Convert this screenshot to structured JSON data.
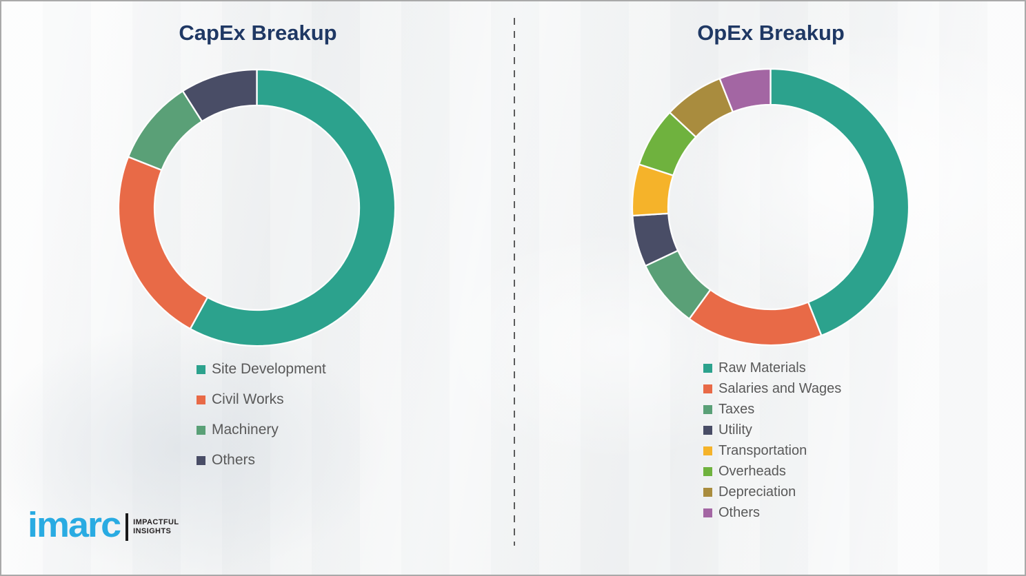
{
  "chart_data": [
    {
      "type": "donut",
      "title": "CapEx Breakup",
      "labels": [
        "Site Development",
        "Civil Works",
        "Machinery",
        "Others"
      ],
      "values": [
        58,
        23,
        10,
        9
      ],
      "unit": "percent",
      "colors": [
        "#2CA28D",
        "#E86A47",
        "#5AA077",
        "#494D66"
      ],
      "start_angle_deg": 0,
      "direction": "clockwise",
      "donut_hole_ratio": 0.74,
      "legend_position": "bottom-left",
      "data_labels_shown": false
    },
    {
      "type": "donut",
      "title": "OpEx Breakup",
      "labels": [
        "Raw Materials",
        "Salaries and Wages",
        "Taxes",
        "Utility",
        "Transportation",
        "Overheads",
        "Depreciation",
        "Others"
      ],
      "values": [
        44,
        16,
        8,
        6,
        6,
        7,
        7,
        6
      ],
      "unit": "percent",
      "colors": [
        "#2CA28D",
        "#E86A47",
        "#5AA077",
        "#494D66",
        "#F5B32A",
        "#6FB23E",
        "#A98C3E",
        "#A366A3"
      ],
      "start_angle_deg": 0,
      "direction": "clockwise",
      "donut_hole_ratio": 0.74,
      "legend_position": "bottom-left",
      "data_labels_shown": false
    }
  ],
  "logo": {
    "brand": "imarc",
    "brand_color": "#29ABE2",
    "tagline_line1": "IMPACTFUL",
    "tagline_line2": "INSIGHTS"
  }
}
